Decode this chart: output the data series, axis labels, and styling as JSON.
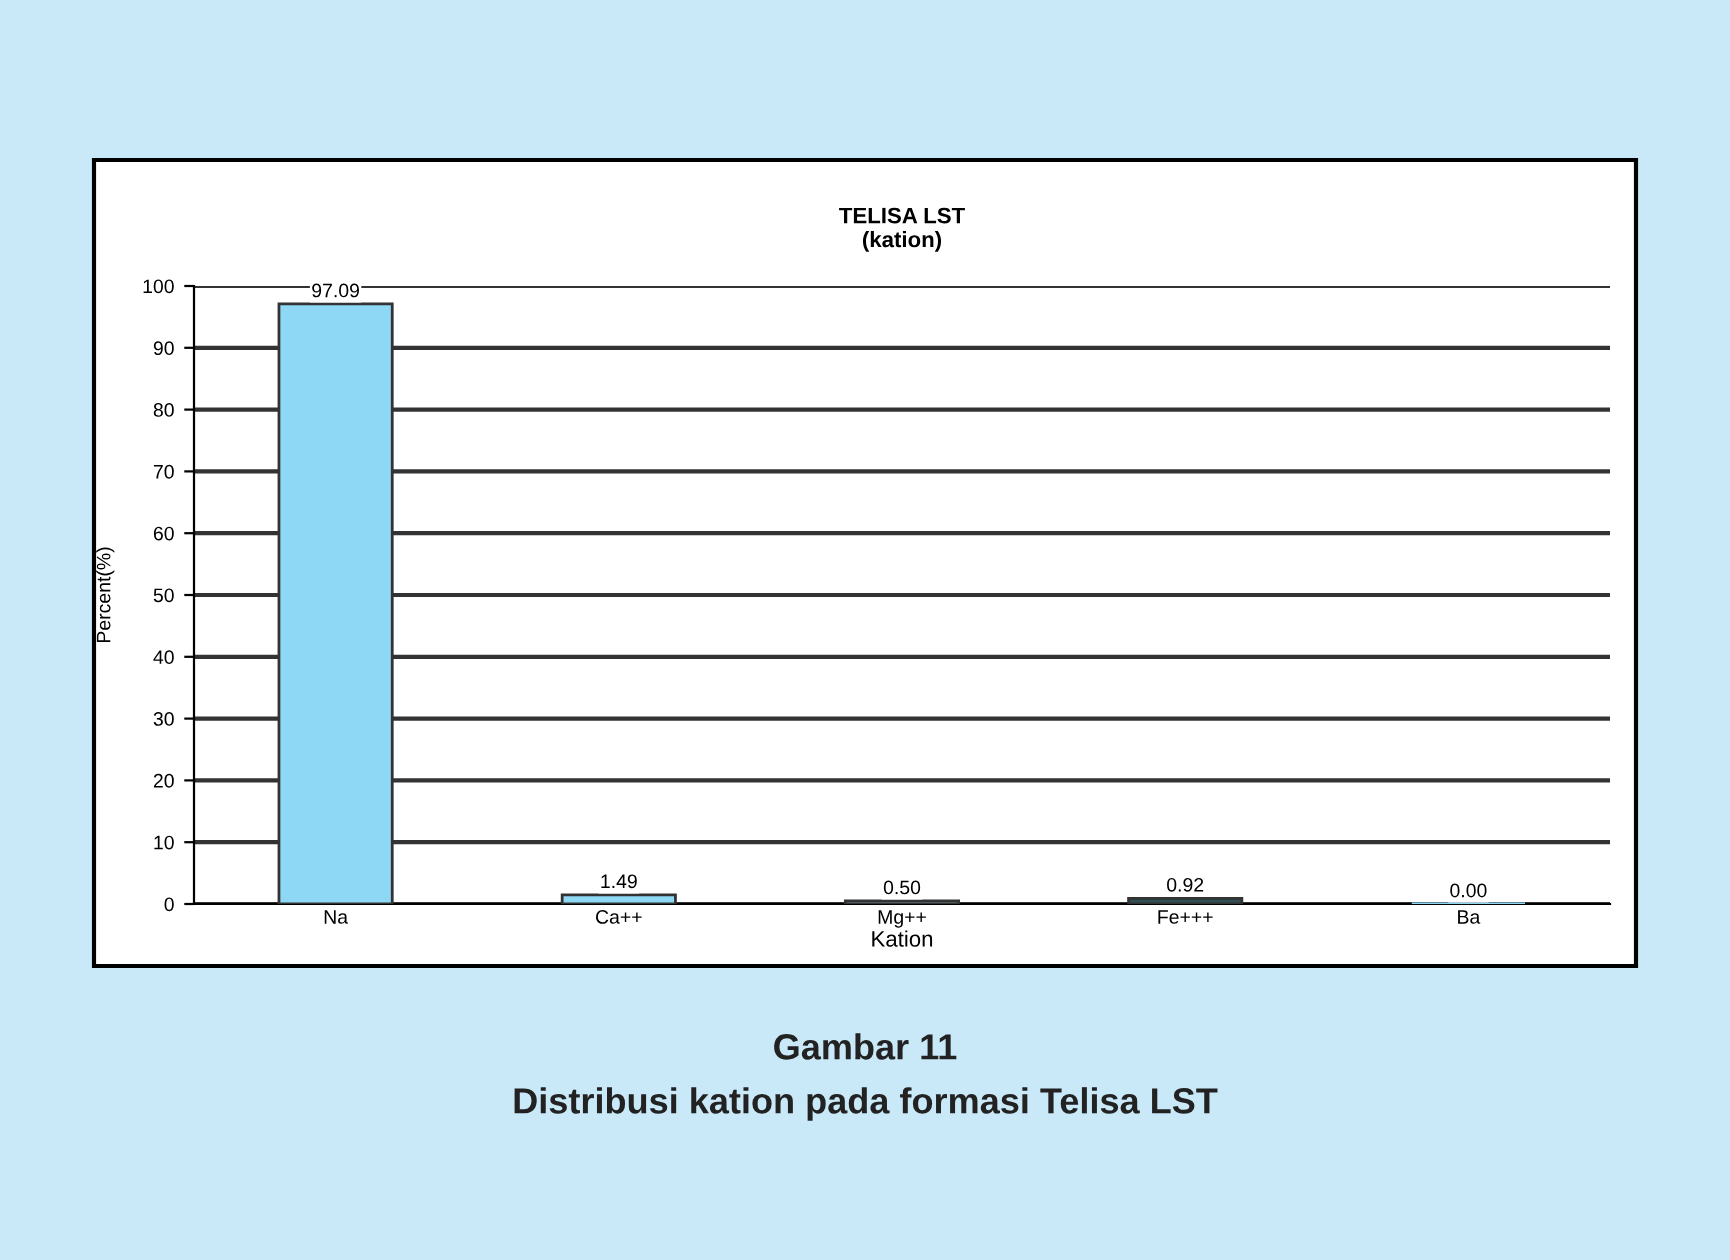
{
  "chart_data": {
    "type": "bar",
    "title": "TELISA LST\n(kation)",
    "xlabel": "Kation",
    "ylabel": "Percent(%)",
    "categories": [
      "Na",
      "Ca++",
      "Mg++",
      "Fe+++",
      "Ba"
    ],
    "values": [
      97.09,
      1.49,
      0.5,
      0.92,
      0.0
    ],
    "value_labels": [
      "97.09",
      "1.49",
      "0.50",
      "0.92",
      "0.00"
    ],
    "colors": [
      "#8fd8f5",
      "#8fd8f5",
      "#9fd0dc",
      "#2f4f55",
      "#8fd8f5"
    ],
    "ylim": [
      0,
      100
    ],
    "yticks": [
      0,
      10,
      20,
      30,
      40,
      50,
      60,
      70,
      80,
      90,
      100
    ],
    "grid": "y",
    "annotations": [
      "Gambar 11",
      "Distribusi kation pada formasi Telisa LST"
    ]
  }
}
